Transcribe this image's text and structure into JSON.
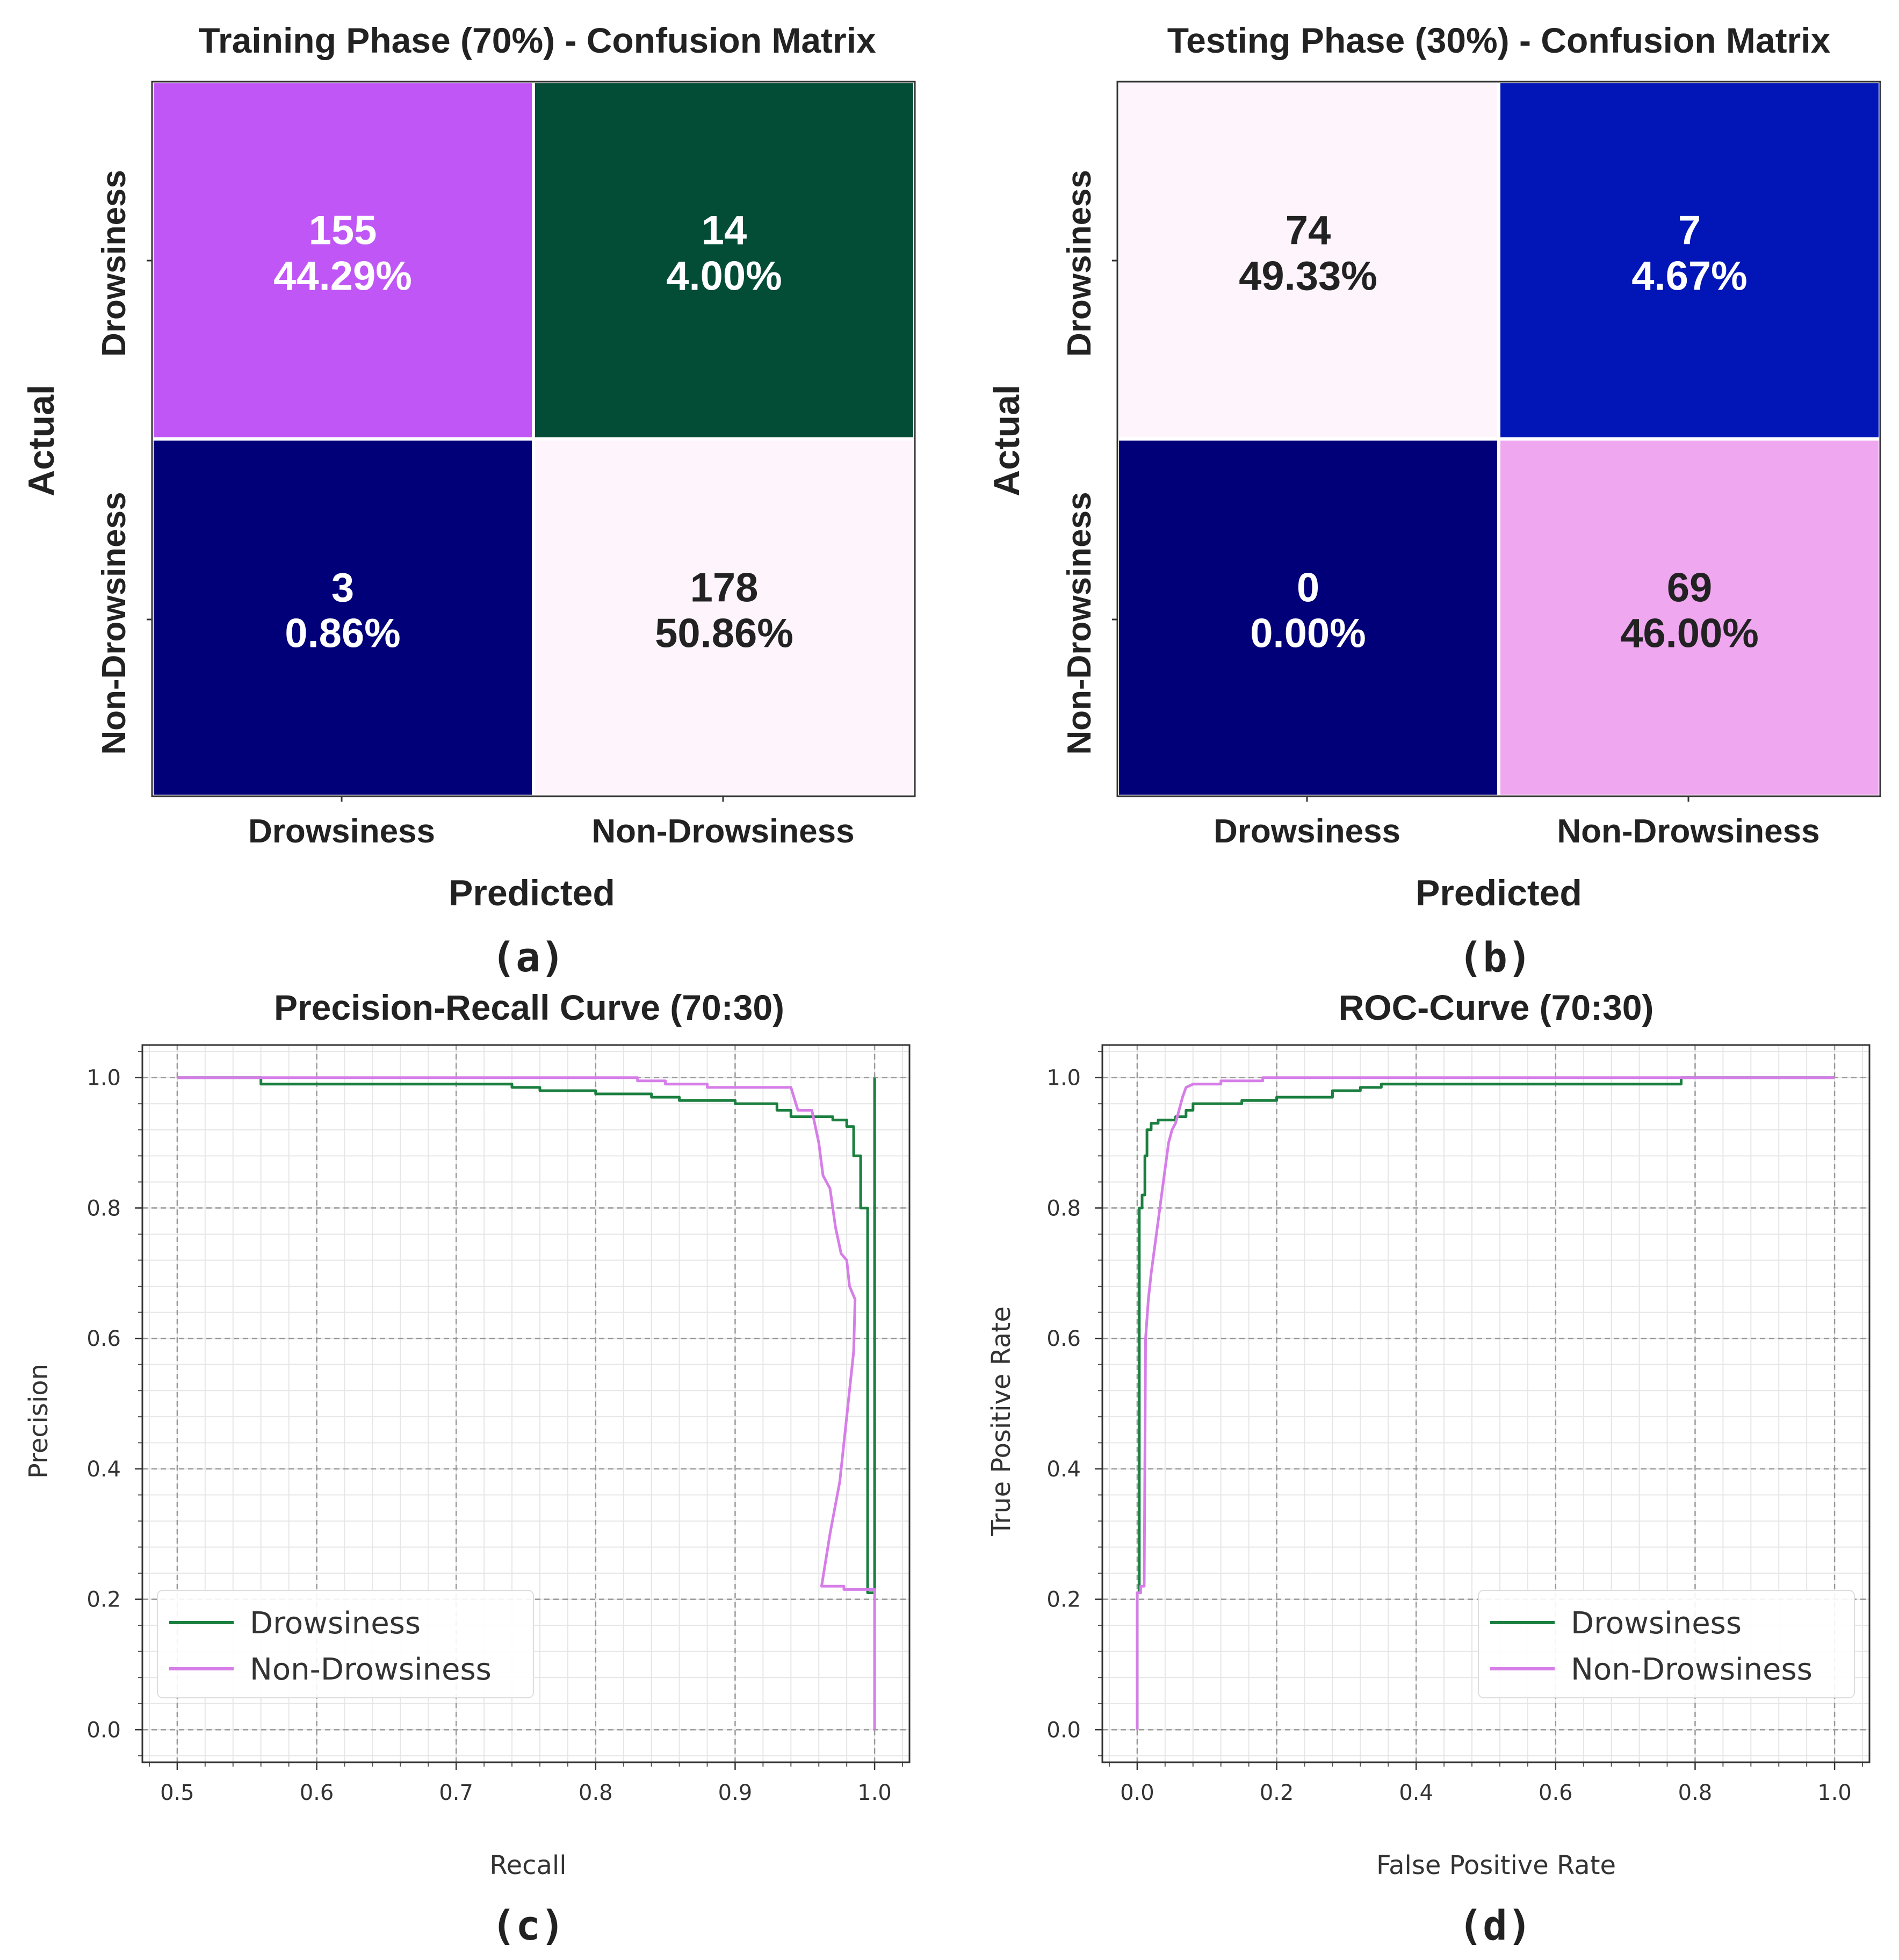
{
  "chart_data": [
    {
      "id": "a",
      "type": "heatmap",
      "title": "Training Phase (70%) - Confusion Matrix",
      "xlabel": "Predicted",
      "ylabel": "Actual",
      "x_categories": [
        "Drowsiness",
        "Non-Drowsiness"
      ],
      "y_categories": [
        "Drowsiness",
        "Non-Drowsiness"
      ],
      "cells": [
        [
          {
            "count": "155",
            "percent": "44.29%",
            "color": "#c056f6",
            "text_color": "#ffffff"
          },
          {
            "count": "14",
            "percent": "4.00%",
            "color": "#034c36",
            "text_color": "#ffffff"
          }
        ],
        [
          {
            "count": "3",
            "percent": "0.86%",
            "color": "#020078",
            "text_color": "#ffffff"
          },
          {
            "count": "178",
            "percent": "50.86%",
            "color": "#fdf4fc",
            "text_color": "#222222"
          }
        ]
      ],
      "panel_label": "(a)"
    },
    {
      "id": "b",
      "type": "heatmap",
      "title": "Testing Phase (30%) - Confusion Matrix",
      "xlabel": "Predicted",
      "ylabel": "Actual",
      "x_categories": [
        "Drowsiness",
        "Non-Drowsiness"
      ],
      "y_categories": [
        "Drowsiness",
        "Non-Drowsiness"
      ],
      "cells": [
        [
          {
            "count": "74",
            "percent": "49.33%",
            "color": "#fdf4fc",
            "text_color": "#222222"
          },
          {
            "count": "7",
            "percent": "4.67%",
            "color": "#0216b8",
            "text_color": "#ffffff"
          }
        ],
        [
          {
            "count": "0",
            "percent": "0.00%",
            "color": "#020078",
            "text_color": "#ffffff"
          },
          {
            "count": "69",
            "percent": "46.00%",
            "color": "#efa8ef",
            "text_color": "#222222"
          }
        ]
      ],
      "panel_label": "(b)"
    },
    {
      "id": "c",
      "type": "line",
      "title": "Precision-Recall Curve (70:30)",
      "xlabel": "Recall",
      "ylabel": "Precision",
      "xlim": [
        0.475,
        1.025
      ],
      "ylim": [
        -0.05,
        1.05
      ],
      "xticks": [
        "0.5",
        "0.6",
        "0.7",
        "0.8",
        "0.9",
        "1.0"
      ],
      "yticks": [
        "0.0",
        "0.2",
        "0.4",
        "0.6",
        "0.8",
        "1.0"
      ],
      "legend_position": "lower-left",
      "series": [
        {
          "name": "Drowsiness",
          "color": "#1a7f3f",
          "points": [
            [
              0.5,
              1.0
            ],
            [
              0.56,
              1.0
            ],
            [
              0.56,
              0.99
            ],
            [
              0.74,
              0.99
            ],
            [
              0.74,
              0.985
            ],
            [
              0.76,
              0.985
            ],
            [
              0.76,
              0.98
            ],
            [
              0.8,
              0.98
            ],
            [
              0.8,
              0.975
            ],
            [
              0.84,
              0.975
            ],
            [
              0.84,
              0.97
            ],
            [
              0.86,
              0.97
            ],
            [
              0.86,
              0.965
            ],
            [
              0.9,
              0.965
            ],
            [
              0.9,
              0.96
            ],
            [
              0.93,
              0.96
            ],
            [
              0.93,
              0.95
            ],
            [
              0.94,
              0.95
            ],
            [
              0.94,
              0.94
            ],
            [
              0.97,
              0.94
            ],
            [
              0.97,
              0.935
            ],
            [
              0.98,
              0.935
            ],
            [
              0.98,
              0.925
            ],
            [
              0.985,
              0.925
            ],
            [
              0.985,
              0.88
            ],
            [
              0.99,
              0.88
            ],
            [
              0.99,
              0.8
            ],
            [
              0.995,
              0.8
            ],
            [
              0.995,
              0.21
            ],
            [
              1.0,
              0.21
            ],
            [
              1.0,
              1.0
            ]
          ]
        },
        {
          "name": "Non-Drowsiness",
          "color": "#d67ee8",
          "points": [
            [
              0.5,
              1.0
            ],
            [
              0.83,
              1.0
            ],
            [
              0.83,
              0.995
            ],
            [
              0.85,
              0.995
            ],
            [
              0.85,
              0.99
            ],
            [
              0.88,
              0.99
            ],
            [
              0.88,
              0.985
            ],
            [
              0.94,
              0.985
            ],
            [
              0.945,
              0.95
            ],
            [
              0.955,
              0.95
            ],
            [
              0.96,
              0.9
            ],
            [
              0.963,
              0.85
            ],
            [
              0.968,
              0.83
            ],
            [
              0.972,
              0.77
            ],
            [
              0.976,
              0.73
            ],
            [
              0.98,
              0.72
            ],
            [
              0.982,
              0.68
            ],
            [
              0.986,
              0.66
            ],
            [
              0.985,
              0.58
            ],
            [
              0.98,
              0.48
            ],
            [
              0.975,
              0.38
            ],
            [
              0.968,
              0.3
            ],
            [
              0.962,
              0.22
            ],
            [
              0.978,
              0.22
            ],
            [
              0.978,
              0.215
            ],
            [
              1.0,
              0.215
            ],
            [
              1.0,
              0.0
            ]
          ]
        }
      ],
      "panel_label": "(c)"
    },
    {
      "id": "d",
      "type": "line",
      "title": "ROC-Curve (70:30)",
      "xlabel": "False Positive Rate",
      "ylabel": "True Positive Rate",
      "xlim": [
        -0.05,
        1.05
      ],
      "ylim": [
        -0.05,
        1.05
      ],
      "xticks": [
        "0.0",
        "0.2",
        "0.4",
        "0.6",
        "0.8",
        "1.0"
      ],
      "yticks": [
        "0.0",
        "0.2",
        "0.4",
        "0.6",
        "0.8",
        "1.0"
      ],
      "legend_position": "lower-right",
      "series": [
        {
          "name": "Drowsiness",
          "color": "#1a7f3f",
          "points": [
            [
              0.0,
              0.0
            ],
            [
              0.0,
              0.21
            ],
            [
              0.003,
              0.21
            ],
            [
              0.003,
              0.8
            ],
            [
              0.007,
              0.8
            ],
            [
              0.007,
              0.82
            ],
            [
              0.011,
              0.82
            ],
            [
              0.011,
              0.88
            ],
            [
              0.014,
              0.88
            ],
            [
              0.014,
              0.92
            ],
            [
              0.02,
              0.92
            ],
            [
              0.02,
              0.93
            ],
            [
              0.03,
              0.93
            ],
            [
              0.03,
              0.935
            ],
            [
              0.055,
              0.935
            ],
            [
              0.055,
              0.94
            ],
            [
              0.07,
              0.94
            ],
            [
              0.07,
              0.95
            ],
            [
              0.08,
              0.95
            ],
            [
              0.08,
              0.96
            ],
            [
              0.15,
              0.96
            ],
            [
              0.15,
              0.965
            ],
            [
              0.2,
              0.965
            ],
            [
              0.2,
              0.97
            ],
            [
              0.28,
              0.97
            ],
            [
              0.28,
              0.98
            ],
            [
              0.32,
              0.98
            ],
            [
              0.32,
              0.985
            ],
            [
              0.35,
              0.985
            ],
            [
              0.35,
              0.99
            ],
            [
              0.78,
              0.99
            ],
            [
              0.78,
              1.0
            ],
            [
              1.0,
              1.0
            ]
          ]
        },
        {
          "name": "Non-Drowsiness",
          "color": "#d67ee8",
          "points": [
            [
              0.0,
              0.0
            ],
            [
              0.0,
              0.21
            ],
            [
              0.005,
              0.21
            ],
            [
              0.005,
              0.22
            ],
            [
              0.01,
              0.22
            ],
            [
              0.012,
              0.6
            ],
            [
              0.016,
              0.66
            ],
            [
              0.02,
              0.7
            ],
            [
              0.025,
              0.74
            ],
            [
              0.03,
              0.78
            ],
            [
              0.035,
              0.82
            ],
            [
              0.04,
              0.86
            ],
            [
              0.045,
              0.9
            ],
            [
              0.05,
              0.92
            ],
            [
              0.055,
              0.93
            ],
            [
              0.06,
              0.95
            ],
            [
              0.065,
              0.97
            ],
            [
              0.07,
              0.985
            ],
            [
              0.08,
              0.99
            ],
            [
              0.12,
              0.99
            ],
            [
              0.12,
              0.995
            ],
            [
              0.18,
              0.995
            ],
            [
              0.18,
              1.0
            ],
            [
              1.0,
              1.0
            ]
          ]
        }
      ],
      "panel_label": "(d)"
    }
  ]
}
